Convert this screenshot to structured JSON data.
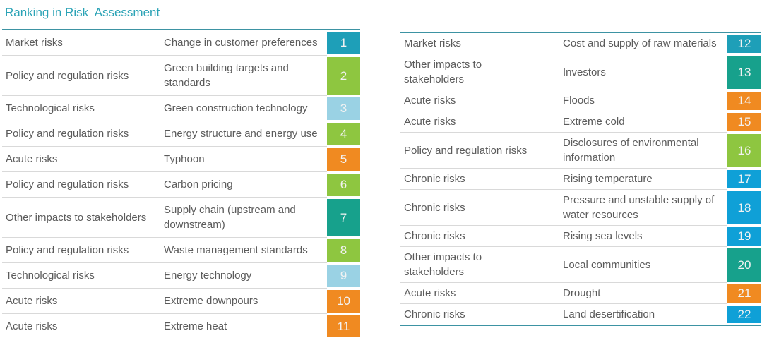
{
  "title": "Ranking in Risk  Assessment",
  "colors": {
    "title": "#2BA3B6",
    "table_border": "#3D93A3",
    "row_divider": "#D9D9D9",
    "body_text": "#5B5B5B",
    "badge_text": "#F2F2F2",
    "market_risks": "#1E9FB8",
    "policy_and_regulation_risks": "#8EC640",
    "technological_risks": "#9AD2E4",
    "acute_risks": "#F08A21",
    "other_impacts_to_stakeholders": "#17A18C",
    "chronic_risks": "#0FA0D7"
  },
  "left_table": {
    "rows": [
      {
        "category": "Market risks",
        "risk": "Change in customer preferences",
        "rank": "1",
        "color": "#1E9FB8"
      },
      {
        "category": "Policy and regulation risks",
        "risk": "Green building targets and standards",
        "rank": "2",
        "color": "#8EC640"
      },
      {
        "category": "Technological risks",
        "risk": "Green construction technology",
        "rank": "3",
        "color": "#9AD2E4"
      },
      {
        "category": "Policy and regulation risks",
        "risk": "Energy structure and energy use",
        "rank": "4",
        "color": "#8EC640"
      },
      {
        "category": "Acute risks",
        "risk": "Typhoon",
        "rank": "5",
        "color": "#F08A21"
      },
      {
        "category": "Policy and regulation risks",
        "risk": "Carbon pricing",
        "rank": "6",
        "color": "#8EC640"
      },
      {
        "category": "Other impacts to stakeholders",
        "risk": "Supply chain (upstream and downstream)",
        "rank": "7",
        "color": "#17A18C"
      },
      {
        "category": "Policy and regulation risks",
        "risk": "Waste management standards",
        "rank": "8",
        "color": "#8EC640"
      },
      {
        "category": "Technological risks",
        "risk": "Energy technology",
        "rank": "9",
        "color": "#9AD2E4"
      },
      {
        "category": "Acute risks",
        "risk": "Extreme downpours",
        "rank": "10",
        "color": "#F08A21"
      },
      {
        "category": "Acute risks",
        "risk": "Extreme heat",
        "rank": "11",
        "color": "#F08A21"
      }
    ]
  },
  "right_table": {
    "rows": [
      {
        "category": "Market risks",
        "risk": "Cost and supply of raw materials",
        "rank": "12",
        "color": "#1E9FB8"
      },
      {
        "category": "Other impacts to stakeholders",
        "risk": "Investors",
        "rank": "13",
        "color": "#17A18C"
      },
      {
        "category": "Acute risks",
        "risk": "Floods",
        "rank": "14",
        "color": "#F08A21"
      },
      {
        "category": "Acute risks",
        "risk": "Extreme cold",
        "rank": "15",
        "color": "#F08A21"
      },
      {
        "category": "Policy and regulation risks",
        "risk": "Disclosures of environmental information",
        "rank": "16",
        "color": "#8EC640"
      },
      {
        "category": "Chronic risks",
        "risk": "Rising temperature",
        "rank": "17",
        "color": "#0FA0D7"
      },
      {
        "category": "Chronic risks",
        "risk": "Pressure and unstable supply of water resources",
        "rank": "18",
        "color": "#0FA0D7"
      },
      {
        "category": "Chronic risks",
        "risk": "Rising sea levels",
        "rank": "19",
        "color": "#0FA0D7"
      },
      {
        "category": "Other impacts to stakeholders",
        "risk": "Local communities",
        "rank": "20",
        "color": "#17A18C"
      },
      {
        "category": "Acute risks",
        "risk": "Drought",
        "rank": "21",
        "color": "#F08A21"
      },
      {
        "category": "Chronic risks",
        "risk": "Land desertification",
        "rank": "22",
        "color": "#0FA0D7"
      }
    ]
  }
}
